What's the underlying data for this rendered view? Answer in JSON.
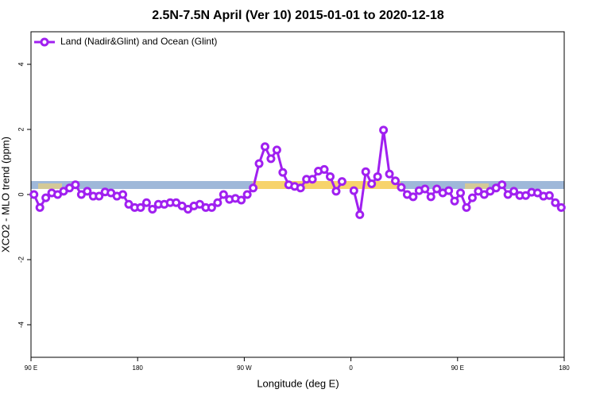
{
  "chart_data": {
    "type": "line",
    "title": "2.5N-7.5N April (Ver 10)   2015-01-01 to 2020-12-18",
    "x_label": "Longitude (deg E)",
    "y_label": "XCO2 - MLO trend (ppm)",
    "xlim": [
      90,
      540
    ],
    "ylim": [
      -5,
      5
    ],
    "xticks": [
      {
        "value": 90,
        "label": "90 E"
      },
      180,
      {
        "value": 270,
        "label": "90 W"
      },
      {
        "value": 360,
        "label": "0"
      },
      {
        "value": 450,
        "label": "90 E"
      },
      {
        "value": 540,
        "label": "180"
      }
    ],
    "yticks": [
      -4,
      -2,
      0,
      2,
      4
    ],
    "legend_position": "top-left",
    "x": [
      92.5,
      97.5,
      102.5,
      107.5,
      112.5,
      117.5,
      122.5,
      127.5,
      132.5,
      137.5,
      142.5,
      147.5,
      152.5,
      157.5,
      162.5,
      167.5,
      172.5,
      177.5,
      182.5,
      187.5,
      192.5,
      197.5,
      202.5,
      207.5,
      212.5,
      217.5,
      222.5,
      227.5,
      232.5,
      237.5,
      242.5,
      247.5,
      252.5,
      257.5,
      262.5,
      267.5,
      272.5,
      277.5,
      282.5,
      287.5,
      292.5,
      297.5,
      302.5,
      307.5,
      312.5,
      317.5,
      322.5,
      327.5,
      332.5,
      337.5,
      342.5,
      347.5,
      352.5,
      357.5,
      362.5,
      367.5,
      372.5,
      377.5,
      382.5,
      387.5,
      392.5,
      397.5,
      402.5,
      407.5,
      412.5,
      417.5,
      422.5,
      427.5,
      432.5,
      437.5,
      442.5,
      447.5,
      452.5,
      457.5,
      462.5,
      467.5,
      472.5,
      477.5,
      482.5,
      487.5,
      492.5,
      497.5,
      502.5,
      507.5,
      512.5,
      517.5,
      522.5,
      527.5,
      532.5,
      537.5
    ],
    "series": [
      {
        "name": "Land (Nadir&Glint) and Ocean (Glint)",
        "color": "#a020f0",
        "values": [
          0.0,
          -0.4,
          -0.1,
          0.05,
          0.0,
          0.1,
          0.2,
          0.3,
          0.0,
          0.1,
          -0.05,
          -0.05,
          0.08,
          0.05,
          -0.05,
          0.0,
          -0.3,
          -0.4,
          -0.4,
          -0.25,
          -0.45,
          -0.3,
          -0.3,
          -0.25,
          -0.25,
          -0.35,
          -0.45,
          -0.35,
          -0.3,
          -0.4,
          -0.4,
          -0.25,
          0.0,
          -0.15,
          -0.12,
          -0.17,
          0.0,
          0.2,
          0.95,
          1.47,
          1.1,
          1.37,
          0.68,
          0.3,
          0.25,
          0.2,
          0.47,
          0.47,
          0.72,
          0.77,
          0.55,
          0.1,
          0.4,
          null,
          0.12,
          -0.62,
          0.7,
          0.33,
          0.55,
          1.98,
          0.63,
          0.42,
          0.22,
          0.0,
          -0.07,
          0.12,
          0.17,
          -0.07,
          0.17,
          0.05,
          0.12,
          -0.2,
          0.05,
          -0.4,
          -0.1,
          0.1,
          0.0,
          0.1,
          0.2,
          0.3,
          0.0,
          0.1,
          -0.03,
          -0.03,
          0.07,
          0.05,
          -0.05,
          -0.03,
          -0.25,
          -0.4
        ]
      }
    ]
  }
}
